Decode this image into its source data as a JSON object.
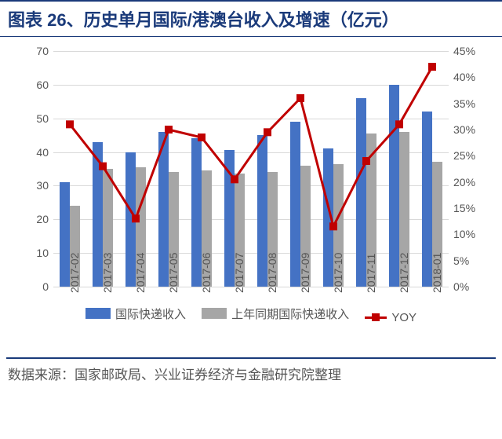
{
  "title": "图表 26、历史单月国际/港澳台收入及增速（亿元）",
  "source": "数据来源：国家邮政局、兴业证券经济与金融研究院整理",
  "chart": {
    "type": "bar+line",
    "background_color": "#ffffff",
    "grid_color": "#d9d9d9",
    "title_color": "#1a3a7a",
    "border_color": "#1a3a7a",
    "categories": [
      "2017-02",
      "2017-03",
      "2017-04",
      "2017-05",
      "2017-06",
      "2017-07",
      "2017-08",
      "2017-09",
      "2017-10",
      "2017-11",
      "2017-12",
      "2018-01"
    ],
    "left_axis": {
      "min": 0,
      "max": 70,
      "step": 10,
      "label_suffix": "",
      "label_fontsize": 14
    },
    "right_axis": {
      "min": 0,
      "max": 45,
      "step": 5,
      "label_suffix": "%",
      "label_fontsize": 14
    },
    "series": {
      "bars1": {
        "name": "国际快递收入",
        "color": "#4472c4",
        "axis": "left",
        "values": [
          31,
          43,
          40,
          46,
          44,
          40.5,
          45,
          49,
          41,
          56,
          60,
          52
        ]
      },
      "bars2": {
        "name": "上年同期国际快递收入",
        "color": "#a6a6a6",
        "axis": "left",
        "values": [
          24,
          35,
          35.5,
          34,
          34.5,
          33.5,
          34,
          36,
          36.5,
          45.5,
          46,
          37
        ]
      },
      "line": {
        "name": "YOY",
        "color": "#c00000",
        "axis": "right",
        "marker": "square",
        "marker_size": 10,
        "line_width": 3,
        "values": [
          31,
          23,
          13,
          30,
          28.5,
          20.5,
          29.5,
          36,
          11.5,
          24,
          31,
          42
        ]
      }
    },
    "bar_group_width_ratio": 0.62,
    "x_label_rotation": -90
  },
  "legend": {
    "bars1": "国际快递收入",
    "bars2": "上年同期国际快递收入",
    "line": "YOY"
  }
}
